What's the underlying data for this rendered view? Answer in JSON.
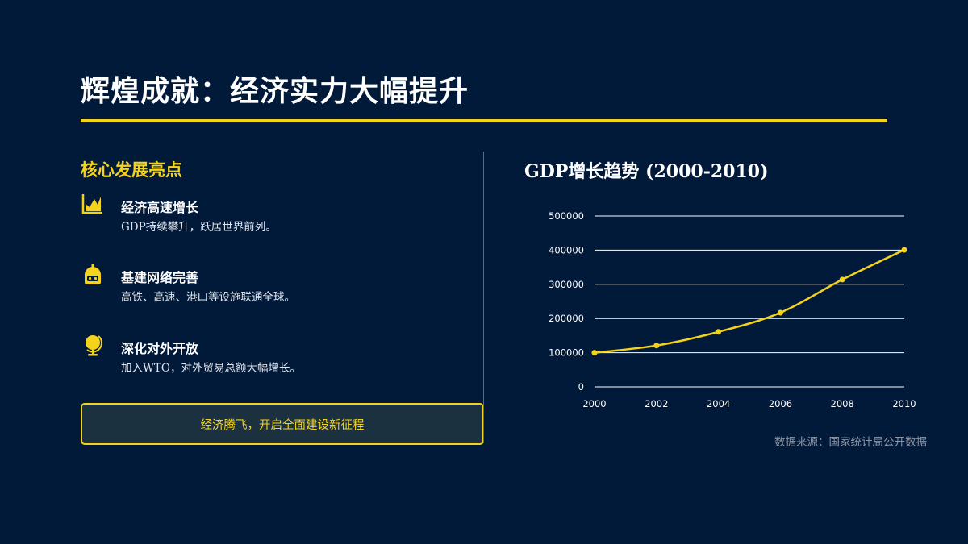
{
  "title": "辉煌成就：经济实力大幅提升",
  "left": {
    "heading": "核心发展亮点",
    "items": [
      {
        "icon": "chart-area-icon",
        "title": "经济高速增长",
        "desc": "GDP持续攀升，跃居世界前列。"
      },
      {
        "icon": "robot-icon",
        "title": "基建网络完善",
        "desc": "高铁、高速、港口等设施联通全球。"
      },
      {
        "icon": "globe-icon",
        "title": "深化对外开放",
        "desc": "加入WTO，对外贸易总额大幅增长。"
      }
    ],
    "banner": "经济腾飞，开启全面建设新征程"
  },
  "chart_title": "GDP增长趋势 (2000-2010)",
  "source": "数据来源：国家统计局公开数据",
  "colors": {
    "background": "#021a3a",
    "accent": "#f5d31c",
    "text": "#ffffff"
  },
  "chart_data": {
    "type": "line",
    "title": "GDP增长趋势 (2000-2010)",
    "x": [
      2000,
      2002,
      2004,
      2006,
      2008,
      2010
    ],
    "series": [
      {
        "values": [
          100000,
          121000,
          161000,
          217000,
          314000,
          401000
        ]
      }
    ],
    "xlabel": "",
    "ylabel": "",
    "xlim": [
      2000,
      2010
    ],
    "ylim": [
      0,
      500000
    ],
    "yticks": [
      "0",
      "100000",
      "200000",
      "300000",
      "400000",
      "500000"
    ],
    "xticks": [
      "2000",
      "2002",
      "2004",
      "2006",
      "2008",
      "2010"
    ],
    "grid": true,
    "legend": "none"
  }
}
